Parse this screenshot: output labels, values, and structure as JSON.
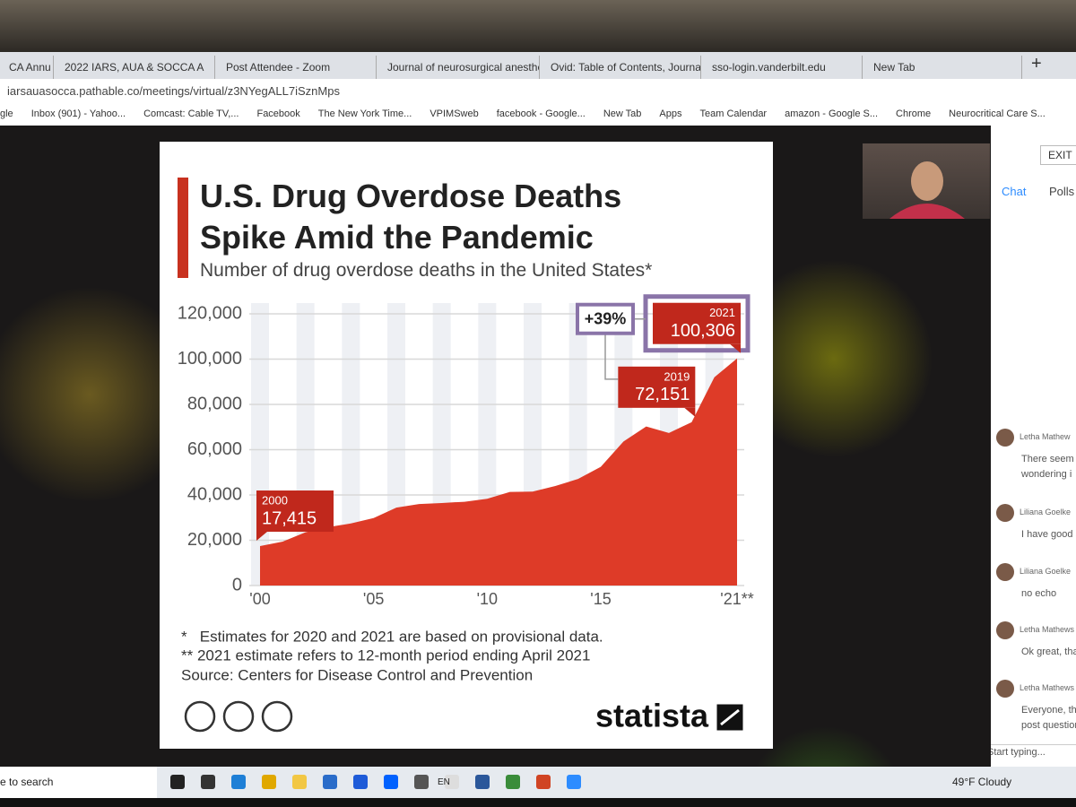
{
  "browser": {
    "tabs": [
      "CA Annu",
      "2022 IARS, AUA & SOCCA A",
      "Post Attendee - Zoom",
      "Journal of neurosurgical anesthe",
      "Ovid: Table of Contents, Journal",
      "sso-login.vanderbilt.edu",
      "New Tab"
    ],
    "address": "iarsauasocca.pathable.co/meetings/virtual/z3NYegALL7iSznMps",
    "bookmarks": [
      "gle",
      "Inbox (901) - Yahoo...",
      "Comcast: Cable TV,...",
      "Facebook",
      "The New York Time...",
      "VPIMSweb",
      "facebook - Google...",
      "New Tab",
      "Apps",
      "Team Calendar",
      "amazon - Google S...",
      "Chrome",
      "Neurocritical Care S..."
    ]
  },
  "zoom": {
    "exit": "EXIT",
    "panel_tabs": [
      "Chat",
      "Polls"
    ],
    "messages": [
      {
        "name": "Letha Mathew",
        "lines": [
          "There seem",
          "wondering i"
        ]
      },
      {
        "name": "Liliana Goelke",
        "lines": [
          "I have good a"
        ]
      },
      {
        "name": "Liliana Goelke",
        "lines": [
          "no echo"
        ]
      },
      {
        "name": "Letha Mathews",
        "lines": [
          "Ok great, tha"
        ]
      },
      {
        "name": "Letha Mathews",
        "lines": [
          "Everyone, tha",
          "post question"
        ]
      }
    ],
    "input_placeholder": "Start typing..."
  },
  "taskbar": {
    "search": "e to search",
    "language": "EN",
    "weather": "49°F Cloudy"
  },
  "chart_data": {
    "type": "area",
    "title": "U.S. Drug Overdose Deaths Spike Amid the Pandemic",
    "subtitle": "Number of drug overdose deaths in the United States*",
    "x": [
      2000,
      2001,
      2002,
      2003,
      2004,
      2005,
      2006,
      2007,
      2008,
      2009,
      2010,
      2011,
      2012,
      2013,
      2014,
      2015,
      2016,
      2017,
      2018,
      2019,
      2020,
      2021
    ],
    "values": [
      17415,
      19394,
      23518,
      25785,
      27424,
      29813,
      34425,
      36010,
      36450,
      37004,
      38329,
      41340,
      41502,
      43982,
      47055,
      52404,
      63632,
      70237,
      67367,
      72151,
      92000,
      100306
    ],
    "value_labels": [
      "17,415",
      null,
      null,
      null,
      null,
      null,
      null,
      null,
      null,
      null,
      null,
      null,
      null,
      null,
      null,
      null,
      null,
      null,
      null,
      "72,151",
      null,
      "100,306"
    ],
    "change_label": "+39%",
    "color": "#de3b28",
    "label_color": "#c0281c",
    "xlim": [
      2000,
      2021
    ],
    "xticks": [
      {
        "value": 2000,
        "label": "'00"
      },
      {
        "value": 2005,
        "label": "'05"
      },
      {
        "value": 2010,
        "label": "'10"
      },
      {
        "value": 2015,
        "label": "'15"
      },
      {
        "value": 2021,
        "label": "'21**"
      }
    ],
    "ylim": [
      0,
      120000
    ],
    "yticks": [
      0,
      {
        "value": 20000,
        "label": "20,000"
      },
      {
        "value": 40000,
        "label": "40,000"
      },
      {
        "value": 60000,
        "label": "60,000"
      },
      {
        "value": 80000,
        "label": "80,000"
      },
      {
        "value": 100000,
        "label": "100,000"
      },
      {
        "value": 120000,
        "label": "120,000"
      }
    ],
    "grid": true,
    "notes": [
      "*   Estimates for 2020 and 2021 are based on provisional data.",
      "** 2021 estimate refers to 12-month period ending April 2021"
    ],
    "source": "Source: Centers for Disease Control and Prevention",
    "brand": "statista"
  }
}
